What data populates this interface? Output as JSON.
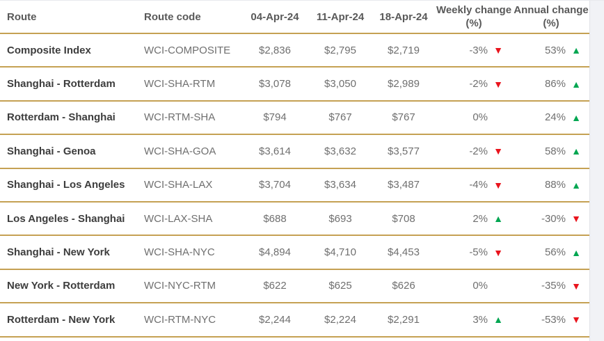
{
  "table": {
    "columns": [
      "Route",
      "Route code",
      "04-Apr-24",
      "11-Apr-24",
      "18-Apr-24",
      "Weekly change (%)",
      "Annual change (%)"
    ],
    "rows": [
      {
        "route": "Composite Index",
        "code": "WCI-COMPOSITE",
        "prices": [
          "$2,836",
          "$2,795",
          "$2,719"
        ],
        "weekly": {
          "value": "-3%",
          "dir": "down"
        },
        "annual": {
          "value": "53%",
          "dir": "up"
        }
      },
      {
        "route": "Shanghai - Rotterdam",
        "code": "WCI-SHA-RTM",
        "prices": [
          "$3,078",
          "$3,050",
          "$2,989"
        ],
        "weekly": {
          "value": "-2%",
          "dir": "down"
        },
        "annual": {
          "value": "86%",
          "dir": "up"
        }
      },
      {
        "route": "Rotterdam - Shanghai",
        "code": "WCI-RTM-SHA",
        "prices": [
          "$794",
          "$767",
          "$767"
        ],
        "weekly": {
          "value": "0%",
          "dir": "none"
        },
        "annual": {
          "value": "24%",
          "dir": "up"
        }
      },
      {
        "route": "Shanghai - Genoa",
        "code": "WCI-SHA-GOA",
        "prices": [
          "$3,614",
          "$3,632",
          "$3,577"
        ],
        "weekly": {
          "value": "-2%",
          "dir": "down"
        },
        "annual": {
          "value": "58%",
          "dir": "up"
        }
      },
      {
        "route": "Shanghai - Los Angeles",
        "code": "WCI-SHA-LAX",
        "prices": [
          "$3,704",
          "$3,634",
          "$3,487"
        ],
        "weekly": {
          "value": "-4%",
          "dir": "down"
        },
        "annual": {
          "value": "88%",
          "dir": "up"
        }
      },
      {
        "route": "Los Angeles - Shanghai",
        "code": "WCI-LAX-SHA",
        "prices": [
          "$688",
          "$693",
          "$708"
        ],
        "weekly": {
          "value": "2%",
          "dir": "up"
        },
        "annual": {
          "value": "-30%",
          "dir": "down"
        }
      },
      {
        "route": "Shanghai - New York",
        "code": "WCI-SHA-NYC",
        "prices": [
          "$4,894",
          "$4,710",
          "$4,453"
        ],
        "weekly": {
          "value": "-5%",
          "dir": "down"
        },
        "annual": {
          "value": "56%",
          "dir": "up"
        }
      },
      {
        "route": "New York - Rotterdam",
        "code": "WCI-NYC-RTM",
        "prices": [
          "$622",
          "$625",
          "$626"
        ],
        "weekly": {
          "value": "0%",
          "dir": "none"
        },
        "annual": {
          "value": "-35%",
          "dir": "down"
        }
      },
      {
        "route": "Rotterdam - New York",
        "code": "WCI-RTM-NYC",
        "prices": [
          "$2,244",
          "$2,224",
          "$2,291"
        ],
        "weekly": {
          "value": "3%",
          "dir": "up"
        },
        "annual": {
          "value": "-53%",
          "dir": "down"
        }
      }
    ]
  },
  "icons": {
    "up_arrow": "▲",
    "down_arrow": "▼"
  },
  "colors": {
    "separator_gold": "#c5a153",
    "up_green": "#00a651",
    "down_red": "#e9141d"
  }
}
